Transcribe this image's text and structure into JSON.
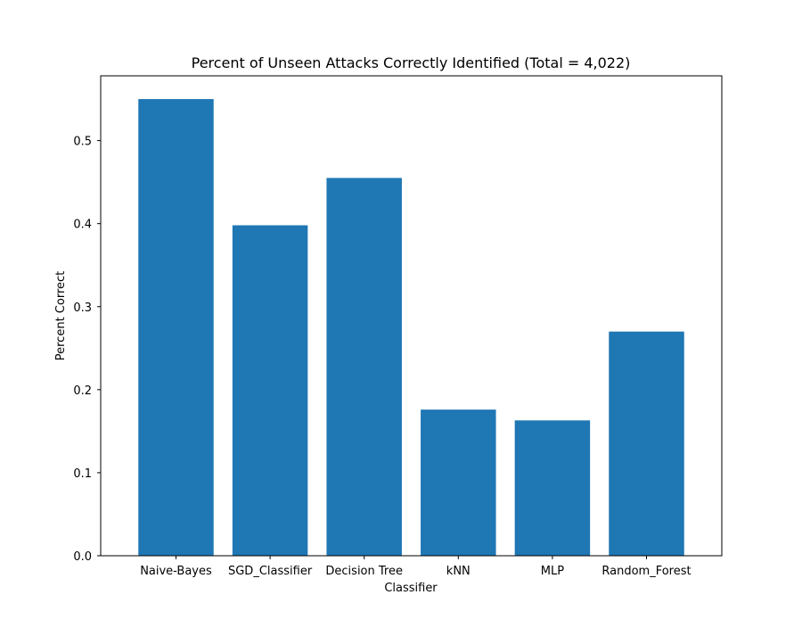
{
  "chart_data": {
    "type": "bar",
    "title": "Percent of Unseen Attacks Correctly Identified (Total = 4,022)",
    "xlabel": "Classifier",
    "ylabel": "Percent Correct",
    "categories": [
      "Naive-Bayes",
      "SGD_Classifier",
      "Decision Tree",
      "kNN",
      "MLP",
      "Random_Forest"
    ],
    "values": [
      0.55,
      0.398,
      0.455,
      0.176,
      0.163,
      0.27
    ],
    "ylim": [
      0,
      0.578
    ],
    "yticks": [
      0.0,
      0.1,
      0.2,
      0.3,
      0.4,
      0.5
    ],
    "ytick_labels": [
      "0.0",
      "0.1",
      "0.2",
      "0.3",
      "0.4",
      "0.5"
    ],
    "grid": false,
    "bar_color": "#1f77b4"
  }
}
